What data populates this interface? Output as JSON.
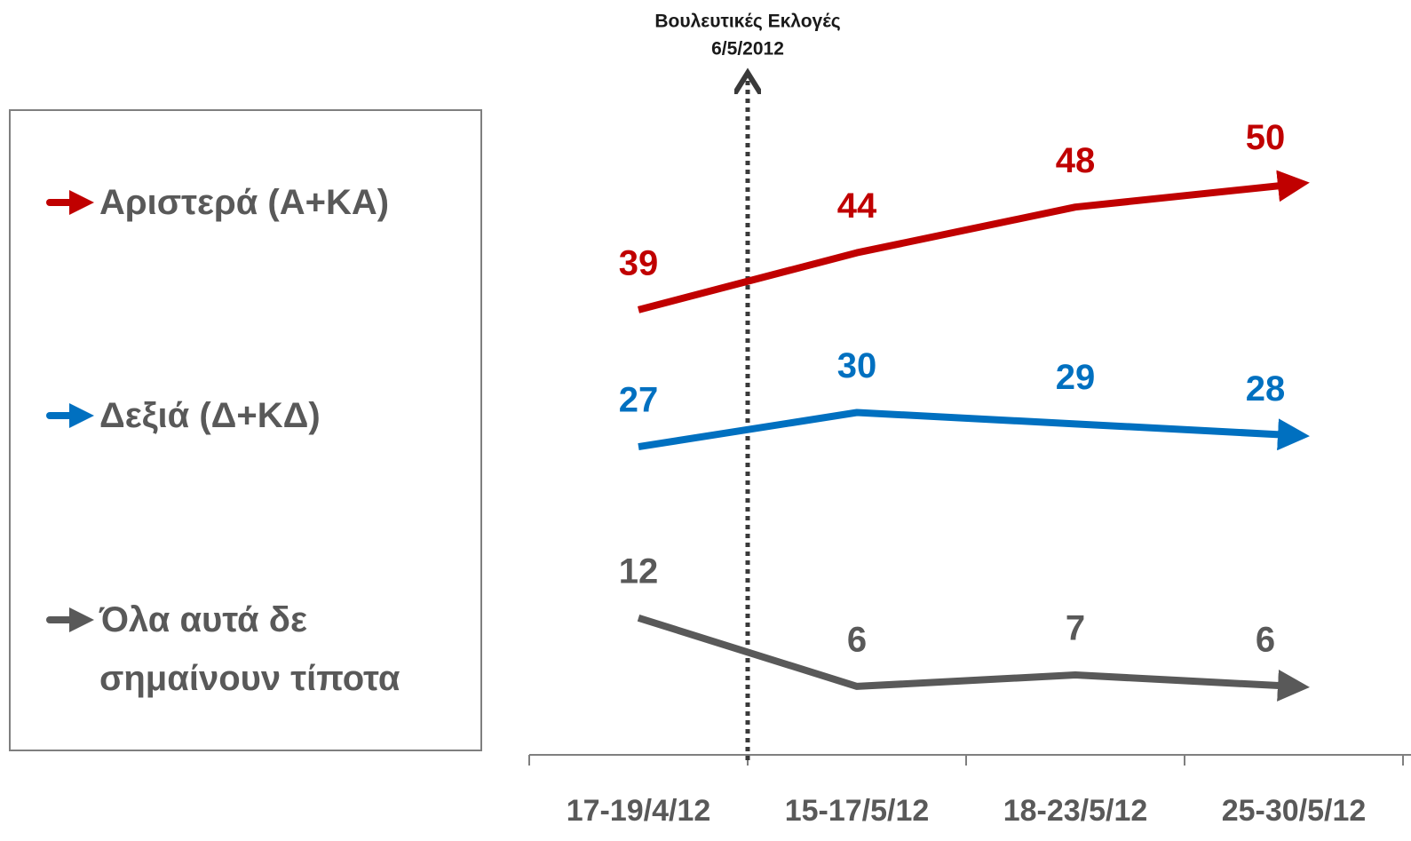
{
  "chart_data": {
    "type": "line",
    "annotation": [
      "Βουλευτικές Εκλογές",
      "6/5/2012"
    ],
    "categories": [
      "17-19/4/12",
      "15-17/5/12",
      "18-23/5/12",
      "25-30/5/12"
    ],
    "series": [
      {
        "name": "Αριστερά (Α+ΚΑ)",
        "color": "#c00000",
        "values": [
          39,
          44,
          48,
          50
        ]
      },
      {
        "name": "Δεξιά (Δ+ΚΔ)",
        "color": "#0070c0",
        "values": [
          27,
          30,
          29,
          28
        ]
      },
      {
        "name": "Όλα αυτά δε σημαίνουν τίποτα",
        "color": "#595959",
        "values": [
          12,
          6,
          7,
          6
        ]
      }
    ],
    "ylim": [
      0,
      60
    ]
  }
}
